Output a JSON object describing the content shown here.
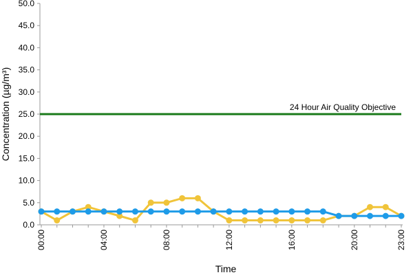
{
  "chart_data": {
    "type": "line",
    "x_label": "Time",
    "y_label": "Concentration (µg/m³)",
    "categories": [
      "00:00",
      null,
      null,
      null,
      "04:00",
      null,
      null,
      null,
      "08:00",
      null,
      null,
      null,
      "12:00",
      null,
      null,
      null,
      "16:00",
      null,
      null,
      null,
      "20:00",
      null,
      null,
      "23:00"
    ],
    "series": [
      {
        "color": "#f0c43a",
        "values": [
          3,
          1,
          3,
          4,
          3,
          2,
          1,
          5,
          5,
          6,
          6,
          3,
          1,
          1,
          1,
          1,
          1,
          1,
          1,
          2,
          2,
          4,
          4,
          2
        ]
      },
      {
        "color": "#1e9be8",
        "values": [
          3,
          3,
          3,
          3,
          3,
          3,
          3,
          3,
          3,
          3,
          3,
          3,
          3,
          3,
          3,
          3,
          3,
          3,
          3,
          2,
          2,
          2,
          2,
          2
        ]
      }
    ],
    "reference_line": {
      "value": 25,
      "label": "24 Hour Air Quality Objective",
      "color": "#1a7a1a"
    },
    "ylim": [
      0,
      50
    ],
    "yticks": [
      {
        "value": 0,
        "label": "0.0"
      },
      {
        "value": 5,
        "label": "5.0"
      },
      {
        "value": 10,
        "label": "10.0"
      },
      {
        "value": 15,
        "label": "15.0"
      },
      {
        "value": 20,
        "label": "20.0"
      },
      {
        "value": 25,
        "label": "25.0"
      },
      {
        "value": 30,
        "label": "30.0"
      },
      {
        "value": 35,
        "label": "35.0"
      },
      {
        "value": 40,
        "label": "40.0"
      },
      {
        "value": 45,
        "label": "45.0"
      },
      {
        "value": 50,
        "label": "50.0"
      }
    ]
  }
}
